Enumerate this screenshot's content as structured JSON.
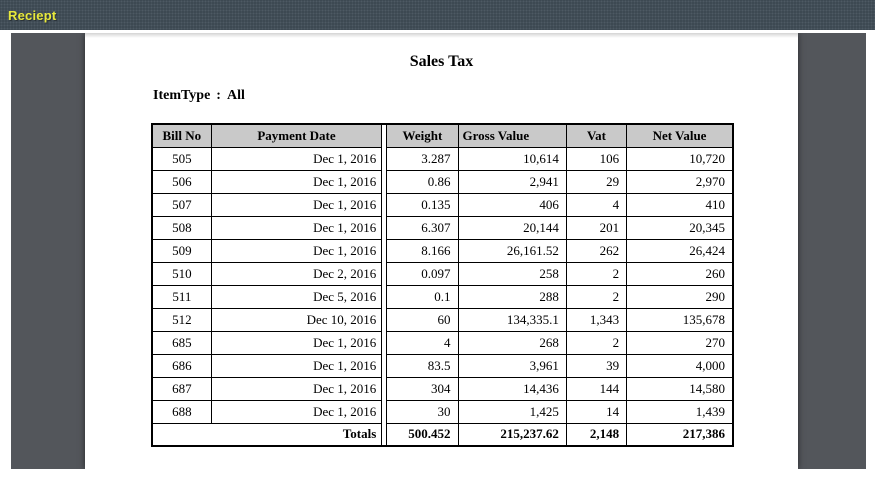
{
  "window": {
    "title": "Reciept"
  },
  "colors": {
    "titlebar_bg": "#3b4750",
    "titlebar_dot": "#4e5a63",
    "title_text": "#e8e93c",
    "viewer_bg": "#53565b",
    "table_header_bg": "#c9c9c9"
  },
  "report": {
    "title": "Sales Tax",
    "filter": {
      "label": "ItemType",
      "separator": ":",
      "value": "All"
    },
    "table": {
      "columns": [
        "Bill No",
        "Payment Date",
        "Weight",
        "Gross Value",
        "Vat",
        "Net Value"
      ],
      "rows": [
        [
          "505",
          "Dec 1, 2016",
          "3.287",
          "10,614",
          "106",
          "10,720"
        ],
        [
          "506",
          "Dec 1, 2016",
          "0.86",
          "2,941",
          "29",
          "2,970"
        ],
        [
          "507",
          "Dec 1, 2016",
          "0.135",
          "406",
          "4",
          "410"
        ],
        [
          "508",
          "Dec 1, 2016",
          "6.307",
          "20,144",
          "201",
          "20,345"
        ],
        [
          "509",
          "Dec 1, 2016",
          "8.166",
          "26,161.52",
          "262",
          "26,424"
        ],
        [
          "510",
          "Dec 2, 2016",
          "0.097",
          "258",
          "2",
          "260"
        ],
        [
          "511",
          "Dec 5, 2016",
          "0.1",
          "288",
          "2",
          "290"
        ],
        [
          "512",
          "Dec 10, 2016",
          "60",
          "134,335.1",
          "1,343",
          "135,678"
        ],
        [
          "685",
          "Dec 1, 2016",
          "4",
          "268",
          "2",
          "270"
        ],
        [
          "686",
          "Dec 1, 2016",
          "83.5",
          "3,961",
          "39",
          "4,000"
        ],
        [
          "687",
          "Dec 1, 2016",
          "304",
          "14,436",
          "144",
          "14,580"
        ],
        [
          "688",
          "Dec 1, 2016",
          "30",
          "1,425",
          "14",
          "1,439"
        ]
      ],
      "totals": {
        "label": "Totals",
        "weight": "500.452",
        "gross": "215,237.62",
        "vat": "2,148",
        "net": "217,386"
      }
    }
  }
}
